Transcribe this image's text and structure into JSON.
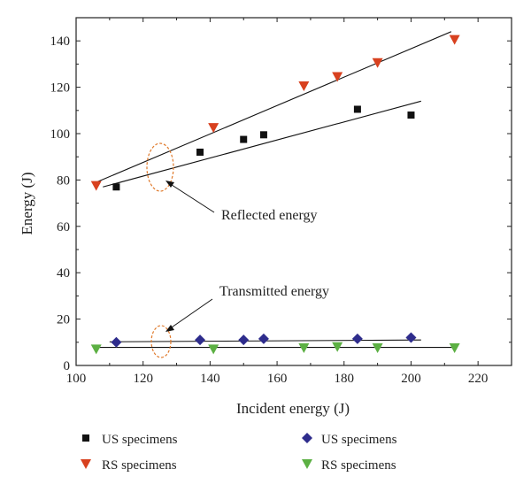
{
  "chart_data": {
    "type": "scatter",
    "xlabel": "Incident energy (J)",
    "ylabel": "Energy (J)",
    "xlim": [
      100,
      230
    ],
    "ylim": [
      0,
      150
    ],
    "xticks": [
      100,
      120,
      140,
      160,
      180,
      200,
      220
    ],
    "yticks": [
      0,
      20,
      40,
      60,
      80,
      100,
      120,
      140
    ],
    "grid": false,
    "legend_position": "bottom",
    "series": [
      {
        "name": "US specimens",
        "group": "Reflected energy",
        "marker": "square",
        "color": "#111111",
        "x": [
          112,
          137,
          150,
          156,
          184,
          200
        ],
        "y": [
          77,
          92,
          97.5,
          99.5,
          110.5,
          108
        ],
        "fit": {
          "x": [
            108,
            203
          ],
          "y": [
            77,
            114
          ]
        }
      },
      {
        "name": "RS specimens",
        "group": "Reflected energy",
        "marker": "triangle-down",
        "color": "#d8411f",
        "x": [
          106,
          141,
          168,
          178,
          190,
          213
        ],
        "y": [
          78,
          103,
          121,
          125,
          131,
          141
        ],
        "fit": {
          "x": [
            106,
            212
          ],
          "y": [
            79,
            144
          ]
        }
      },
      {
        "name": "US specimens",
        "group": "Transmitted energy",
        "marker": "diamond",
        "color": "#2e2c8c",
        "x": [
          112,
          137,
          150,
          156,
          184,
          200
        ],
        "y": [
          10,
          11,
          11,
          11.5,
          11.5,
          12
        ],
        "fit": {
          "x": [
            110,
            203
          ],
          "y": [
            10.2,
            11
          ]
        }
      },
      {
        "name": "RS specimens",
        "group": "Transmitted energy",
        "marker": "triangle-down",
        "color": "#5cb043",
        "x": [
          106,
          141,
          168,
          178,
          190,
          213
        ],
        "y": [
          7.5,
          7.5,
          8,
          8.5,
          8,
          8
        ],
        "fit": {
          "x": [
            106,
            213
          ],
          "y": [
            7.8,
            7.8
          ]
        }
      }
    ],
    "annotations": [
      {
        "text": "Reflected energy",
        "target_x": 126,
        "target_y": 85
      },
      {
        "text": "Transmitted energy",
        "target_x": 126,
        "target_y": 9.5
      }
    ]
  }
}
